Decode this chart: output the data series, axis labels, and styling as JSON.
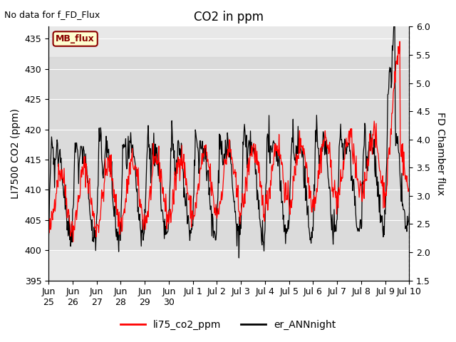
{
  "title": "CO2 in ppm",
  "note": "No data for f_FD_Flux",
  "ylabel_left": "LI7500 CO2 (ppm)",
  "ylabel_right": "FD Chamber flux",
  "ylim_left": [
    395,
    437
  ],
  "ylim_right": [
    1.5,
    6.0
  ],
  "legend_label_red": "li75_co2_ppm",
  "legend_label_black": "er_ANNnight",
  "legend_box_label": "MB_flux",
  "background_color": "#ffffff",
  "plot_bg_color": "#e8e8e8",
  "band_color": "#d0d0d0",
  "title_fontsize": 12,
  "label_fontsize": 10,
  "tick_fontsize": 9,
  "note_fontsize": 9,
  "left_ticks": [
    395,
    400,
    405,
    410,
    415,
    420,
    425,
    430,
    435
  ],
  "right_ticks": [
    1.5,
    2.0,
    2.5,
    3.0,
    3.5,
    4.0,
    4.5,
    5.0,
    5.5,
    6.0
  ],
  "tick_labels": [
    "Jun\n25",
    "Jun\n26",
    "Jun\n27",
    "Jun\n28",
    "Jun\n29",
    "Jun\n30",
    "Jul 1",
    "Jul 2",
    "Jul 3",
    "Jul 4",
    "Jul 5",
    "Jul 6",
    "Jul 7",
    "Jul 8",
    "Jul 9",
    "Jul 10"
  ]
}
